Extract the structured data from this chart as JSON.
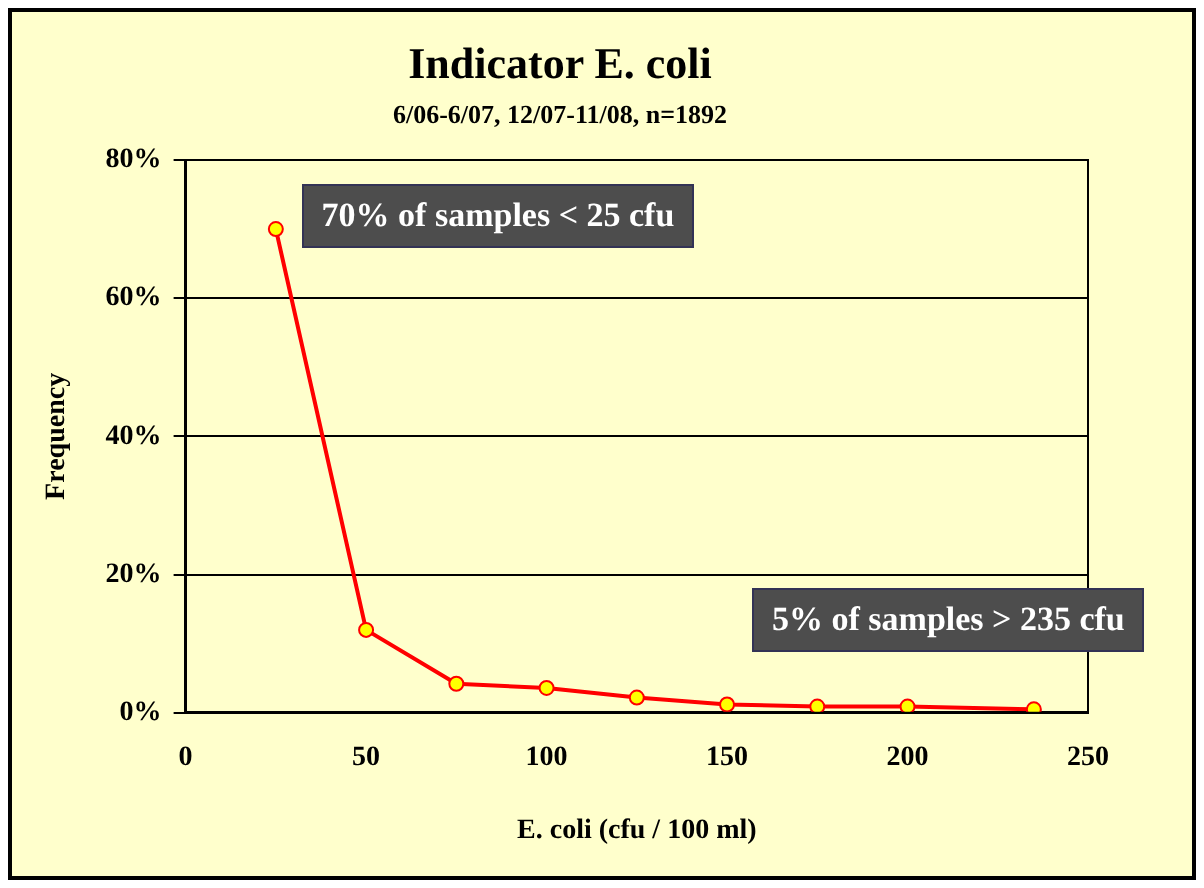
{
  "chart_data": {
    "type": "line",
    "title": "Indicator E. coli",
    "subtitle": "6/06-6/07, 12/07-11/08, n=1892",
    "xlabel": "E. coli (cfu / 100 ml)",
    "ylabel": "Frequency",
    "x": [
      25,
      50,
      75,
      100,
      125,
      150,
      175,
      200,
      235
    ],
    "series": [
      {
        "color": "#ff0000",
        "values": [
          70,
          12,
          4.2,
          3.6,
          2.2,
          1.2,
          0.9,
          0.9,
          0.5
        ]
      }
    ],
    "xlim": [
      0,
      250
    ],
    "xticks": [
      0,
      50,
      100,
      150,
      200,
      250
    ],
    "ylim": [
      0,
      80
    ],
    "yticks": [
      {
        "value": 0,
        "label": "0%"
      },
      {
        "value": 20,
        "label": "20%"
      },
      {
        "value": 40,
        "label": "40%"
      },
      {
        "value": 60,
        "label": "60%"
      },
      {
        "value": 80,
        "label": "80%"
      }
    ],
    "grid": "y",
    "legend": false,
    "marker": "circle",
    "line_style": "solid",
    "annotations": [
      "70% of samples < 25 cfu",
      "5% of samples > 235 cfu"
    ]
  }
}
